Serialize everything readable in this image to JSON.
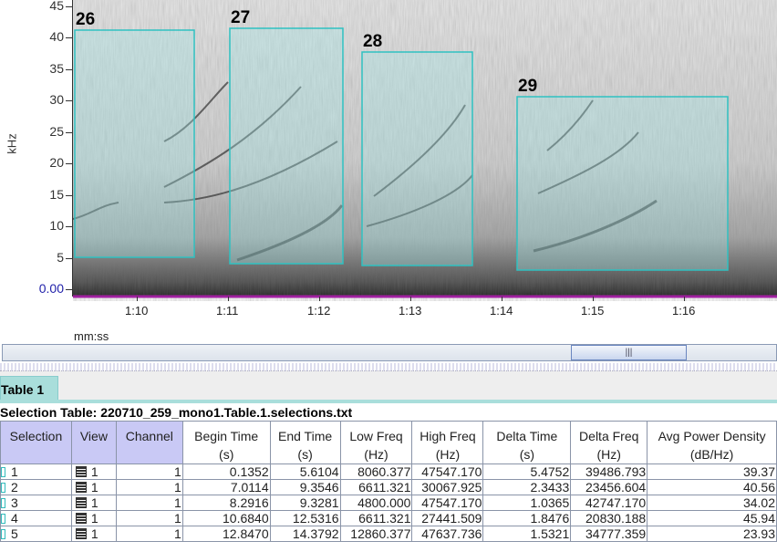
{
  "spectrogram": {
    "y_axis_label": "kHz",
    "y_ticks": [
      "45",
      "40",
      "35",
      "30",
      "25",
      "20",
      "15",
      "10",
      "5",
      "0.00"
    ],
    "x_axis_label": "mm:ss",
    "x_ticks": [
      "1:10",
      "1:11",
      "1:12",
      "1:13",
      "1:14",
      "1:15",
      "1:16"
    ],
    "selection_color": "#2fc1c1",
    "selections": [
      {
        "label": "26"
      },
      {
        "label": "27"
      },
      {
        "label": "28"
      },
      {
        "label": "29"
      }
    ]
  },
  "scrollbar": {
    "thumb_grip": "|||"
  },
  "tabs": [
    {
      "label": "Table 1",
      "active": true
    }
  ],
  "table": {
    "title": "Selection Table: 220710_259_mono1.Table.1.selections.txt",
    "columns": [
      {
        "label": "Selection",
        "unit": ""
      },
      {
        "label": "View",
        "unit": ""
      },
      {
        "label": "Channel",
        "unit": ""
      },
      {
        "label": "Begin Time",
        "unit": "(s)"
      },
      {
        "label": "End Time",
        "unit": "(s)"
      },
      {
        "label": "Low Freq",
        "unit": "(Hz)"
      },
      {
        "label": "High Freq",
        "unit": "(Hz)"
      },
      {
        "label": "Delta Time",
        "unit": "(s)"
      },
      {
        "label": "Delta Freq",
        "unit": "(Hz)"
      },
      {
        "label": "Avg Power Density",
        "unit": "(dB/Hz)"
      }
    ],
    "rows": [
      [
        "1",
        "1",
        "1",
        "0.1352",
        "5.6104",
        "8060.377",
        "47547.170",
        "5.4752",
        "39486.793",
        "39.37"
      ],
      [
        "2",
        "1",
        "1",
        "7.0114",
        "9.3546",
        "6611.321",
        "30067.925",
        "2.3433",
        "23456.604",
        "40.56"
      ],
      [
        "3",
        "1",
        "1",
        "8.2916",
        "9.3281",
        "4800.000",
        "47547.170",
        "1.0365",
        "42747.170",
        "34.02"
      ],
      [
        "4",
        "1",
        "1",
        "10.6840",
        "12.5316",
        "6611.321",
        "27441.509",
        "1.8476",
        "20830.188",
        "45.94"
      ],
      [
        "5",
        "1",
        "1",
        "12.8470",
        "14.3792",
        "12860.377",
        "47637.736",
        "1.5321",
        "34777.359",
        "23.93"
      ]
    ]
  }
}
